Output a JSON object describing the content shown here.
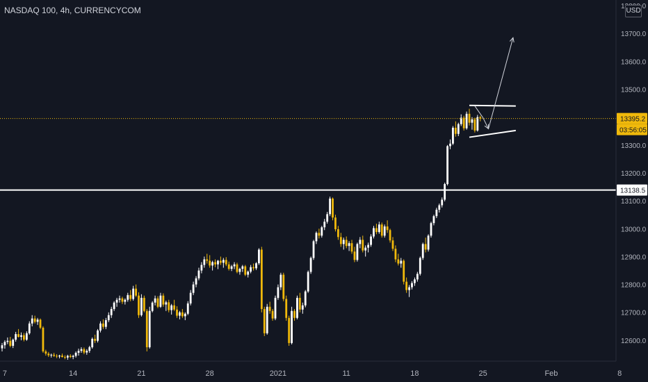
{
  "symbol_title": "NASDAQ 100, 4h, CURRENCYCOM",
  "currency_button": "USD",
  "chart_data": {
    "type": "candlestick",
    "title": "NASDAQ 100, 4h, CURRENCYCOM",
    "ylim": [
      12525,
      13820
    ],
    "y_ticks": [
      "13800.0",
      "13700.0",
      "13600.0",
      "13500.0",
      "13400.0",
      "13300.0",
      "13200.0",
      "13100.0",
      "13000.0",
      "12900.0",
      "12800.0",
      "12700.0",
      "12600.0"
    ],
    "y_tick_values": [
      13800,
      13700,
      13600,
      13500,
      13400,
      13300,
      13200,
      13100,
      13000,
      12900,
      12800,
      12700,
      12600
    ],
    "x_ticks": [
      "7",
      "14",
      "21",
      "28",
      "2021",
      "11",
      "18",
      "25",
      "Feb",
      "8"
    ],
    "x_tick_index": [
      1,
      26,
      51,
      76,
      101,
      126,
      151,
      176,
      201,
      226
    ],
    "grid": false,
    "colors": {
      "background": "#131722",
      "up": "#ffffff",
      "down": "#f0b90b",
      "axis_text": "#b2b5be",
      "price_label": "#f0b90b",
      "level_label_bg": "#ffffff"
    },
    "candles": [
      [
        12571,
        12590,
        12560,
        12582
      ],
      [
        12582,
        12600,
        12570,
        12594
      ],
      [
        12594,
        12610,
        12586,
        12598
      ],
      [
        12598,
        12612,
        12575,
        12580
      ],
      [
        12580,
        12606,
        12572,
        12602
      ],
      [
        12602,
        12630,
        12595,
        12622
      ],
      [
        12622,
        12640,
        12610,
        12612
      ],
      [
        12612,
        12628,
        12600,
        12618
      ],
      [
        12618,
        12626,
        12596,
        12602
      ],
      [
        12602,
        12632,
        12598,
        12625
      ],
      [
        12625,
        12668,
        12620,
        12660
      ],
      [
        12660,
        12690,
        12650,
        12678
      ],
      [
        12678,
        12688,
        12660,
        12666
      ],
      [
        12666,
        12680,
        12655,
        12674
      ],
      [
        12674,
        12678,
        12640,
        12645
      ],
      [
        12645,
        12650,
        12555,
        12560
      ],
      [
        12560,
        12566,
        12545,
        12552
      ],
      [
        12552,
        12558,
        12540,
        12546
      ],
      [
        12546,
        12552,
        12538,
        12548
      ],
      [
        12548,
        12555,
        12540,
        12544
      ],
      [
        12544,
        12550,
        12536,
        12542
      ],
      [
        12542,
        12548,
        12535,
        12545
      ],
      [
        12545,
        12552,
        12538,
        12540
      ],
      [
        12540,
        12546,
        12532,
        12538
      ],
      [
        12538,
        12548,
        12530,
        12544
      ],
      [
        12544,
        12550,
        12536,
        12540
      ],
      [
        12540,
        12548,
        12532,
        12544
      ],
      [
        12544,
        12560,
        12538,
        12555
      ],
      [
        12555,
        12570,
        12545,
        12562
      ],
      [
        12562,
        12575,
        12555,
        12568
      ],
      [
        12568,
        12574,
        12550,
        12556
      ],
      [
        12556,
        12568,
        12548,
        12562
      ],
      [
        12562,
        12580,
        12555,
        12575
      ],
      [
        12575,
        12610,
        12570,
        12605
      ],
      [
        12605,
        12620,
        12590,
        12598
      ],
      [
        12598,
        12640,
        12592,
        12635
      ],
      [
        12635,
        12668,
        12628,
        12660
      ],
      [
        12660,
        12675,
        12640,
        12648
      ],
      [
        12648,
        12680,
        12640,
        12672
      ],
      [
        12672,
        12700,
        12665,
        12690
      ],
      [
        12690,
        12720,
        12680,
        12712
      ],
      [
        12712,
        12740,
        12705,
        12735
      ],
      [
        12735,
        12752,
        12720,
        12745
      ],
      [
        12745,
        12760,
        12735,
        12750
      ],
      [
        12750,
        12756,
        12730,
        12738
      ],
      [
        12738,
        12750,
        12728,
        12745
      ],
      [
        12745,
        12770,
        12738,
        12762
      ],
      [
        12762,
        12780,
        12740,
        12748
      ],
      [
        12748,
        12795,
        12742,
        12785
      ],
      [
        12785,
        12800,
        12755,
        12760
      ],
      [
        12760,
        12772,
        12680,
        12690
      ],
      [
        12690,
        12765,
        12685,
        12752
      ],
      [
        12752,
        12760,
        12700,
        12705
      ],
      [
        12705,
        12712,
        12560,
        12575
      ],
      [
        12575,
        12720,
        12570,
        12705
      ],
      [
        12705,
        12740,
        12700,
        12735
      ],
      [
        12735,
        12760,
        12725,
        12750
      ],
      [
        12750,
        12758,
        12715,
        12720
      ],
      [
        12720,
        12770,
        12716,
        12760
      ],
      [
        12760,
        12768,
        12720,
        12728
      ],
      [
        12728,
        12742,
        12705,
        12736
      ],
      [
        12736,
        12745,
        12700,
        12708
      ],
      [
        12708,
        12730,
        12692,
        12725
      ],
      [
        12725,
        12745,
        12705,
        12710
      ],
      [
        12710,
        12722,
        12680,
        12688
      ],
      [
        12688,
        12705,
        12675,
        12700
      ],
      [
        12700,
        12712,
        12680,
        12686
      ],
      [
        12686,
        12700,
        12672,
        12695
      ],
      [
        12695,
        12740,
        12690,
        12732
      ],
      [
        12732,
        12780,
        12725,
        12770
      ],
      [
        12770,
        12810,
        12762,
        12800
      ],
      [
        12800,
        12830,
        12790,
        12822
      ],
      [
        12822,
        12860,
        12815,
        12850
      ],
      [
        12850,
        12880,
        12840,
        12870
      ],
      [
        12870,
        12900,
        12860,
        12890
      ],
      [
        12890,
        12910,
        12875,
        12885
      ],
      [
        12885,
        12905,
        12860,
        12868
      ],
      [
        12868,
        12885,
        12850,
        12880
      ],
      [
        12880,
        12890,
        12862,
        12872
      ],
      [
        12872,
        12888,
        12855,
        12885
      ],
      [
        12885,
        12900,
        12870,
        12878
      ],
      [
        12878,
        12895,
        12860,
        12888
      ],
      [
        12888,
        12898,
        12866,
        12872
      ],
      [
        12872,
        12882,
        12850,
        12856
      ],
      [
        12856,
        12870,
        12848,
        12865
      ],
      [
        12865,
        12880,
        12855,
        12872
      ],
      [
        12872,
        12878,
        12840,
        12845
      ],
      [
        12845,
        12860,
        12835,
        12856
      ],
      [
        12856,
        12870,
        12845,
        12865
      ],
      [
        12865,
        12870,
        12830,
        12835
      ],
      [
        12835,
        12850,
        12825,
        12846
      ],
      [
        12846,
        12870,
        12840,
        12862
      ],
      [
        12862,
        12875,
        12850,
        12858
      ],
      [
        12858,
        12880,
        12852,
        12876
      ],
      [
        12876,
        12930,
        12870,
        12925
      ],
      [
        12925,
        12935,
        12700,
        12712
      ],
      [
        12712,
        12720,
        12615,
        12625
      ],
      [
        12625,
        12730,
        12620,
        12720
      ],
      [
        12720,
        12738,
        12695,
        12705
      ],
      [
        12705,
        12712,
        12670,
        12678
      ],
      [
        12678,
        12760,
        12672,
        12752
      ],
      [
        12752,
        12800,
        12745,
        12790
      ],
      [
        12790,
        12842,
        12780,
        12835
      ],
      [
        12835,
        12842,
        12740,
        12748
      ],
      [
        12748,
        12760,
        12670,
        12680
      ],
      [
        12680,
        12688,
        12580,
        12590
      ],
      [
        12590,
        12720,
        12585,
        12705
      ],
      [
        12705,
        12712,
        12670,
        12680
      ],
      [
        12680,
        12760,
        12675,
        12752
      ],
      [
        12752,
        12770,
        12700,
        12710
      ],
      [
        12710,
        12735,
        12695,
        12725
      ],
      [
        12725,
        12780,
        12718,
        12775
      ],
      [
        12775,
        12850,
        12770,
        12845
      ],
      [
        12845,
        12900,
        12838,
        12895
      ],
      [
        12895,
        12960,
        12888,
        12955
      ],
      [
        12955,
        12990,
        12945,
        12985
      ],
      [
        12985,
        13000,
        12965,
        12975
      ],
      [
        12975,
        13010,
        12968,
        13005
      ],
      [
        13005,
        13035,
        12995,
        13025
      ],
      [
        13025,
        13060,
        13018,
        13052
      ],
      [
        13052,
        13115,
        13045,
        13108
      ],
      [
        13108,
        13112,
        13030,
        13040
      ],
      [
        13040,
        13050,
        12990,
        12998
      ],
      [
        12998,
        13010,
        12960,
        12970
      ],
      [
        12970,
        12985,
        12935,
        12945
      ],
      [
        12945,
        12968,
        12925,
        12960
      ],
      [
        12960,
        12972,
        12930,
        12938
      ],
      [
        12938,
        12955,
        12920,
        12948
      ],
      [
        12948,
        12960,
        12910,
        12918
      ],
      [
        12918,
        12935,
        12880,
        12888
      ],
      [
        12888,
        12950,
        12882,
        12945
      ],
      [
        12945,
        12970,
        12930,
        12960
      ],
      [
        12960,
        12975,
        12915,
        12922
      ],
      [
        12922,
        12940,
        12900,
        12932
      ],
      [
        12932,
        12950,
        12915,
        12942
      ],
      [
        12942,
        12980,
        12935,
        12972
      ],
      [
        12972,
        13010,
        12965,
        13002
      ],
      [
        13002,
        13018,
        12980,
        12988
      ],
      [
        12988,
        13025,
        12982,
        13015
      ],
      [
        13015,
        13022,
        12968,
        12975
      ],
      [
        12975,
        13015,
        12968,
        13008
      ],
      [
        13008,
        13030,
        12985,
        12995
      ],
      [
        12995,
        13000,
        12950,
        12958
      ],
      [
        12958,
        12970,
        12920,
        12928
      ],
      [
        12928,
        12940,
        12880,
        12890
      ],
      [
        12890,
        12910,
        12868,
        12875
      ],
      [
        12875,
        12895,
        12860,
        12885
      ],
      [
        12885,
        12890,
        12800,
        12810
      ],
      [
        12810,
        12825,
        12770,
        12780
      ],
      [
        12780,
        12798,
        12755,
        12790
      ],
      [
        12790,
        12812,
        12782,
        12805
      ],
      [
        12805,
        12825,
        12795,
        12818
      ],
      [
        12818,
        12845,
        12810,
        12838
      ],
      [
        12838,
        12900,
        12832,
        12895
      ],
      [
        12895,
        12950,
        12888,
        12945
      ],
      [
        12945,
        12968,
        12915,
        12925
      ],
      [
        12925,
        12980,
        12918,
        12975
      ],
      [
        12975,
        13025,
        12968,
        13020
      ],
      [
        13020,
        13050,
        13012,
        13045
      ],
      [
        13045,
        13075,
        13038,
        13068
      ],
      [
        13068,
        13090,
        13058,
        13084
      ],
      [
        13084,
        13112,
        13076,
        13104
      ],
      [
        13104,
        13165,
        13098,
        13160
      ],
      [
        13160,
        13300,
        13155,
        13296
      ],
      [
        13296,
        13320,
        13285,
        13305
      ],
      [
        13305,
        13368,
        13300,
        13362
      ],
      [
        13362,
        13385,
        13330,
        13340
      ],
      [
        13340,
        13380,
        13332,
        13375
      ],
      [
        13375,
        13410,
        13368,
        13398
      ],
      [
        13398,
        13405,
        13352,
        13360
      ],
      [
        13360,
        13420,
        13355,
        13412
      ],
      [
        13412,
        13430,
        13370,
        13380
      ],
      [
        13380,
        13400,
        13355,
        13392
      ],
      [
        13392,
        13398,
        13345,
        13352
      ],
      [
        13352,
        13408,
        13348,
        13400
      ],
      [
        13400,
        13405,
        13385,
        13395
      ]
    ],
    "current_price": 13395.2,
    "countdown": "03:56:05",
    "horizontal_level": 13138.5,
    "pattern_lines": [
      {
        "start": [
          171,
          13442
        ],
        "end": [
          188,
          13440
        ]
      },
      {
        "start": [
          171,
          13328
        ],
        "end": [
          188,
          13352
        ]
      }
    ],
    "arrows": [
      {
        "path": [
          [
            173,
            13440
          ],
          [
            176,
            13398
          ],
          [
            178,
            13358
          ]
        ]
      },
      {
        "path": [
          [
            178,
            13358
          ],
          [
            187,
            13685
          ]
        ]
      }
    ]
  }
}
